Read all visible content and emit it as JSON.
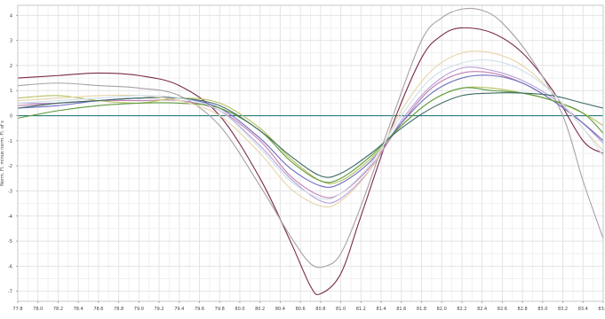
{
  "chart_data": {
    "type": "line",
    "title": "",
    "xlabel": "",
    "ylabel": "Norm. Fl. minus norm. Fl. of s",
    "xlim": [
      77.8,
      83.6
    ],
    "ylim": [
      -7.4,
      4.4
    ],
    "grid": true,
    "legend": "none",
    "x_ticks": [
      77.8,
      78.0,
      78.2,
      78.4,
      78.6,
      78.8,
      79.0,
      79.2,
      79.4,
      79.6,
      79.8,
      80.0,
      80.2,
      80.4,
      80.6,
      80.8,
      81.0,
      81.2,
      81.4,
      81.6,
      81.8,
      82.0,
      82.2,
      82.4,
      82.6,
      82.8,
      83.0,
      83.2,
      83.4,
      83.6
    ],
    "x_tick_labels": [
      "77.8",
      "78.0",
      "78.2",
      "78.4",
      "78.6",
      "78.8",
      "79.0",
      "79.2",
      "79.4",
      "79.6",
      "79.8",
      "80.0",
      "80.2",
      "80.4",
      "80.6",
      "80.8",
      "81.0",
      "81.2",
      "81.4",
      "81.6",
      "81.8",
      "82.0",
      "82.2",
      "82.4",
      "82.6",
      "82.8",
      "83.0",
      "83.2",
      "83.4",
      "83.6"
    ],
    "y_ticks": [
      4,
      3,
      2,
      1,
      0,
      -1,
      -2,
      -3,
      -4,
      -5,
      -6,
      -7
    ],
    "y_tick_labels": [
      "4",
      "3",
      "2",
      "1",
      "0",
      "-1",
      "-2",
      "-3",
      "-4",
      "-5",
      "-6",
      "-7"
    ],
    "baseline": {
      "y": 0,
      "color": "#2e7d7d"
    },
    "series": [
      {
        "color": "#7a2a4a",
        "x": [
          77.8,
          78.2,
          78.6,
          79.0,
          79.4,
          79.8,
          80.2,
          80.5,
          80.7,
          80.8,
          81.0,
          81.2,
          81.5,
          81.8,
          82.0,
          82.2,
          82.5,
          82.8,
          83.1,
          83.4,
          83.6
        ],
        "y": [
          1.5,
          1.6,
          1.7,
          1.6,
          1.2,
          0.0,
          -2.5,
          -5.0,
          -6.8,
          -7.1,
          -6.3,
          -4.0,
          -0.5,
          2.3,
          3.2,
          3.5,
          3.3,
          2.5,
          1.0,
          -1.0,
          -1.5
        ]
      },
      {
        "color": "#a8a0a8",
        "x": [
          77.8,
          78.2,
          78.6,
          79.0,
          79.4,
          79.8,
          80.2,
          80.5,
          80.7,
          80.85,
          81.0,
          81.2,
          81.5,
          81.8,
          82.0,
          82.2,
          82.4,
          82.6,
          82.9,
          83.2,
          83.4,
          83.6
        ],
        "y": [
          1.2,
          1.3,
          1.2,
          1.1,
          0.8,
          -0.4,
          -2.8,
          -4.8,
          -5.9,
          -6.0,
          -5.5,
          -3.6,
          -0.2,
          3.0,
          3.9,
          4.25,
          4.2,
          3.7,
          2.2,
          0.0,
          -2.6,
          -4.9
        ]
      },
      {
        "color": "#b9a0d9",
        "x": [
          77.8,
          78.2,
          78.6,
          79.0,
          79.4,
          79.8,
          80.2,
          80.5,
          80.8,
          81.0,
          81.3,
          81.6,
          81.9,
          82.2,
          82.5,
          82.8,
          83.1,
          83.4,
          83.6
        ],
        "y": [
          0.5,
          0.5,
          0.6,
          0.7,
          0.7,
          0.2,
          -1.2,
          -2.5,
          -3.4,
          -3.3,
          -2.1,
          -0.2,
          1.2,
          1.9,
          1.8,
          1.4,
          0.7,
          -0.3,
          -1.1
        ]
      },
      {
        "color": "#c07fb0",
        "x": [
          77.8,
          78.2,
          78.6,
          79.0,
          79.4,
          79.8,
          80.2,
          80.5,
          80.8,
          81.0,
          81.3,
          81.6,
          81.9,
          82.2,
          82.5,
          82.8,
          83.1,
          83.4,
          83.6
        ],
        "y": [
          0.4,
          0.5,
          0.6,
          0.6,
          0.6,
          0.2,
          -1.0,
          -2.4,
          -3.2,
          -3.1,
          -2.0,
          -0.3,
          1.1,
          1.7,
          1.7,
          1.3,
          0.6,
          -0.3,
          -1.0
        ]
      },
      {
        "color": "#6d6dc0",
        "x": [
          77.8,
          78.2,
          78.6,
          79.0,
          79.4,
          79.8,
          80.2,
          80.5,
          80.8,
          81.0,
          81.3,
          81.6,
          81.9,
          82.2,
          82.5,
          82.8,
          83.1,
          83.4,
          83.6
        ],
        "y": [
          0.3,
          0.4,
          0.6,
          0.7,
          0.7,
          0.3,
          -0.9,
          -2.1,
          -2.8,
          -2.7,
          -1.8,
          -0.3,
          0.9,
          1.5,
          1.6,
          1.3,
          0.6,
          -0.3,
          -1.0
        ]
      },
      {
        "color": "#b8c060",
        "x": [
          77.8,
          78.2,
          78.6,
          79.0,
          79.4,
          79.8,
          80.2,
          80.5,
          80.8,
          81.0,
          81.3,
          81.6,
          81.9,
          82.2,
          82.5,
          82.8,
          83.1,
          83.4,
          83.6
        ],
        "y": [
          0.7,
          0.8,
          0.6,
          0.5,
          0.7,
          0.5,
          -0.5,
          -1.7,
          -2.6,
          -2.6,
          -1.7,
          -0.4,
          0.6,
          1.1,
          1.1,
          0.9,
          0.6,
          0.1,
          -0.4
        ]
      },
      {
        "color": "#5c9a3c",
        "x": [
          77.8,
          78.2,
          78.6,
          79.0,
          79.4,
          79.8,
          80.2,
          80.5,
          80.8,
          81.0,
          81.3,
          81.6,
          81.9,
          82.2,
          82.5,
          82.8,
          83.1,
          83.4,
          83.6
        ],
        "y": [
          -0.1,
          0.2,
          0.4,
          0.5,
          0.5,
          0.3,
          -0.6,
          -1.8,
          -2.6,
          -2.5,
          -1.6,
          -0.4,
          0.6,
          1.1,
          1.0,
          0.9,
          0.6,
          0.1,
          -0.7
        ]
      },
      {
        "color": "#3d6a66",
        "x": [
          77.8,
          78.2,
          78.6,
          79.0,
          79.4,
          79.8,
          80.2,
          80.5,
          80.8,
          81.0,
          81.3,
          81.6,
          81.9,
          82.2,
          82.5,
          82.8,
          83.1,
          83.4,
          83.6
        ],
        "y": [
          0.3,
          0.5,
          0.6,
          0.7,
          0.7,
          0.4,
          -0.6,
          -1.6,
          -2.4,
          -2.3,
          -1.5,
          -0.5,
          0.3,
          0.8,
          0.9,
          0.9,
          0.8,
          0.5,
          0.3
        ]
      },
      {
        "color": "#e6d4a8",
        "x": [
          77.8,
          78.2,
          78.6,
          79.0,
          79.4,
          79.8,
          80.2,
          80.5,
          80.8,
          81.0,
          81.3,
          81.6,
          81.9,
          82.2,
          82.5,
          82.8,
          83.1,
          83.4,
          83.6
        ],
        "y": [
          0.6,
          0.7,
          0.8,
          0.8,
          0.6,
          0.0,
          -1.5,
          -2.9,
          -3.6,
          -3.4,
          -2.1,
          0.2,
          1.8,
          2.5,
          2.5,
          2.0,
          0.9,
          -0.5,
          -1.4
        ]
      },
      {
        "color": "#cfe0ea",
        "x": [
          77.8,
          78.2,
          78.6,
          79.0,
          79.4,
          79.8,
          80.2,
          80.5,
          80.8,
          81.0,
          81.3,
          81.6,
          81.9,
          82.2,
          82.5,
          82.8,
          83.1,
          83.4,
          83.6
        ],
        "y": [
          0.5,
          0.6,
          0.7,
          0.8,
          0.7,
          0.2,
          -1.3,
          -2.6,
          -3.3,
          -3.1,
          -1.9,
          0.0,
          1.5,
          2.1,
          2.2,
          1.8,
          0.9,
          -0.5,
          -1.6
        ]
      }
    ]
  }
}
